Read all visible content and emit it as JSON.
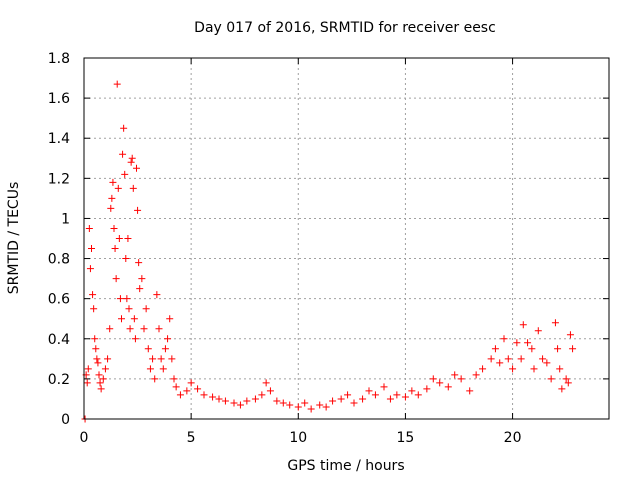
{
  "chart_data": {
    "type": "scatter",
    "title": "Day 017 of 2016, SRMTID for receiver eesc",
    "xlabel": "GPS time / hours",
    "ylabel": "SRMTID / TECUs",
    "xlim": [
      0,
      24.5
    ],
    "ylim": [
      0,
      1.8
    ],
    "xticks": [
      0,
      5,
      10,
      15,
      20
    ],
    "xtick_labels": [
      "0",
      "5",
      "10",
      "15",
      "20"
    ],
    "yticks": [
      0,
      0.2,
      0.4,
      0.6,
      0.8,
      1,
      1.2,
      1.4,
      1.6,
      1.8
    ],
    "ytick_labels": [
      "0",
      "0.2",
      "0.4",
      "0.6",
      "0.8",
      "1",
      "1.2",
      "1.4",
      "1.6",
      "1.8"
    ],
    "grid": true,
    "marker": "+",
    "series": [
      {
        "name": "SRMTID",
        "color": "#ff0000",
        "points": [
          [
            0.05,
            0.0
          ],
          [
            0.1,
            0.22
          ],
          [
            0.15,
            0.18
          ],
          [
            0.2,
            0.25
          ],
          [
            0.25,
            0.95
          ],
          [
            0.3,
            0.75
          ],
          [
            0.35,
            0.85
          ],
          [
            0.4,
            0.62
          ],
          [
            0.45,
            0.55
          ],
          [
            0.5,
            0.4
          ],
          [
            0.55,
            0.35
          ],
          [
            0.6,
            0.3
          ],
          [
            0.65,
            0.28
          ],
          [
            0.7,
            0.22
          ],
          [
            0.75,
            0.18
          ],
          [
            0.8,
            0.15
          ],
          [
            0.9,
            0.2
          ],
          [
            1.0,
            0.25
          ],
          [
            1.1,
            0.3
          ],
          [
            1.2,
            0.45
          ],
          [
            1.25,
            1.05
          ],
          [
            1.3,
            1.1
          ],
          [
            1.35,
            1.18
          ],
          [
            1.4,
            0.95
          ],
          [
            1.45,
            0.85
          ],
          [
            1.5,
            0.7
          ],
          [
            1.55,
            1.67
          ],
          [
            1.6,
            1.15
          ],
          [
            1.65,
            0.9
          ],
          [
            1.7,
            0.6
          ],
          [
            1.75,
            0.5
          ],
          [
            1.8,
            1.32
          ],
          [
            1.85,
            1.45
          ],
          [
            1.9,
            1.22
          ],
          [
            1.95,
            0.8
          ],
          [
            2.0,
            0.6
          ],
          [
            2.05,
            0.9
          ],
          [
            2.1,
            0.55
          ],
          [
            2.15,
            0.45
          ],
          [
            2.2,
            1.28
          ],
          [
            2.25,
            1.3
          ],
          [
            2.3,
            1.15
          ],
          [
            2.35,
            0.5
          ],
          [
            2.4,
            0.4
          ],
          [
            2.45,
            1.25
          ],
          [
            2.5,
            1.04
          ],
          [
            2.55,
            0.78
          ],
          [
            2.6,
            0.65
          ],
          [
            2.7,
            0.7
          ],
          [
            2.8,
            0.45
          ],
          [
            2.9,
            0.55
          ],
          [
            3.0,
            0.35
          ],
          [
            3.1,
            0.25
          ],
          [
            3.2,
            0.3
          ],
          [
            3.3,
            0.2
          ],
          [
            3.4,
            0.62
          ],
          [
            3.5,
            0.45
          ],
          [
            3.6,
            0.3
          ],
          [
            3.7,
            0.25
          ],
          [
            3.8,
            0.35
          ],
          [
            3.9,
            0.4
          ],
          [
            4.0,
            0.5
          ],
          [
            4.1,
            0.3
          ],
          [
            4.2,
            0.2
          ],
          [
            4.3,
            0.16
          ],
          [
            4.5,
            0.12
          ],
          [
            4.8,
            0.14
          ],
          [
            5.0,
            0.18
          ],
          [
            5.3,
            0.15
          ],
          [
            5.6,
            0.12
          ],
          [
            6.0,
            0.11
          ],
          [
            6.3,
            0.1
          ],
          [
            6.6,
            0.09
          ],
          [
            7.0,
            0.08
          ],
          [
            7.3,
            0.07
          ],
          [
            7.6,
            0.09
          ],
          [
            8.0,
            0.1
          ],
          [
            8.3,
            0.12
          ],
          [
            8.5,
            0.18
          ],
          [
            8.7,
            0.14
          ],
          [
            9.0,
            0.09
          ],
          [
            9.3,
            0.08
          ],
          [
            9.6,
            0.07
          ],
          [
            10.0,
            0.06
          ],
          [
            10.3,
            0.08
          ],
          [
            10.6,
            0.05
          ],
          [
            11.0,
            0.07
          ],
          [
            11.3,
            0.06
          ],
          [
            11.6,
            0.09
          ],
          [
            12.0,
            0.1
          ],
          [
            12.3,
            0.12
          ],
          [
            12.6,
            0.08
          ],
          [
            13.0,
            0.1
          ],
          [
            13.3,
            0.14
          ],
          [
            13.6,
            0.12
          ],
          [
            14.0,
            0.16
          ],
          [
            14.3,
            0.1
          ],
          [
            14.6,
            0.12
          ],
          [
            15.0,
            0.11
          ],
          [
            15.3,
            0.14
          ],
          [
            15.6,
            0.12
          ],
          [
            16.0,
            0.15
          ],
          [
            16.3,
            0.2
          ],
          [
            16.6,
            0.18
          ],
          [
            17.0,
            0.16
          ],
          [
            17.3,
            0.22
          ],
          [
            17.6,
            0.2
          ],
          [
            18.0,
            0.14
          ],
          [
            18.3,
            0.22
          ],
          [
            18.6,
            0.25
          ],
          [
            19.0,
            0.3
          ],
          [
            19.2,
            0.35
          ],
          [
            19.4,
            0.28
          ],
          [
            19.6,
            0.4
          ],
          [
            19.8,
            0.3
          ],
          [
            20.0,
            0.25
          ],
          [
            20.2,
            0.38
          ],
          [
            20.4,
            0.3
          ],
          [
            20.5,
            0.47
          ],
          [
            20.7,
            0.38
          ],
          [
            20.9,
            0.35
          ],
          [
            21.0,
            0.25
          ],
          [
            21.2,
            0.44
          ],
          [
            21.4,
            0.3
          ],
          [
            21.6,
            0.28
          ],
          [
            21.8,
            0.2
          ],
          [
            22.0,
            0.48
          ],
          [
            22.1,
            0.35
          ],
          [
            22.2,
            0.25
          ],
          [
            22.3,
            0.15
          ],
          [
            22.5,
            0.2
          ],
          [
            22.6,
            0.18
          ],
          [
            22.7,
            0.42
          ],
          [
            22.8,
            0.35
          ]
        ]
      }
    ]
  }
}
